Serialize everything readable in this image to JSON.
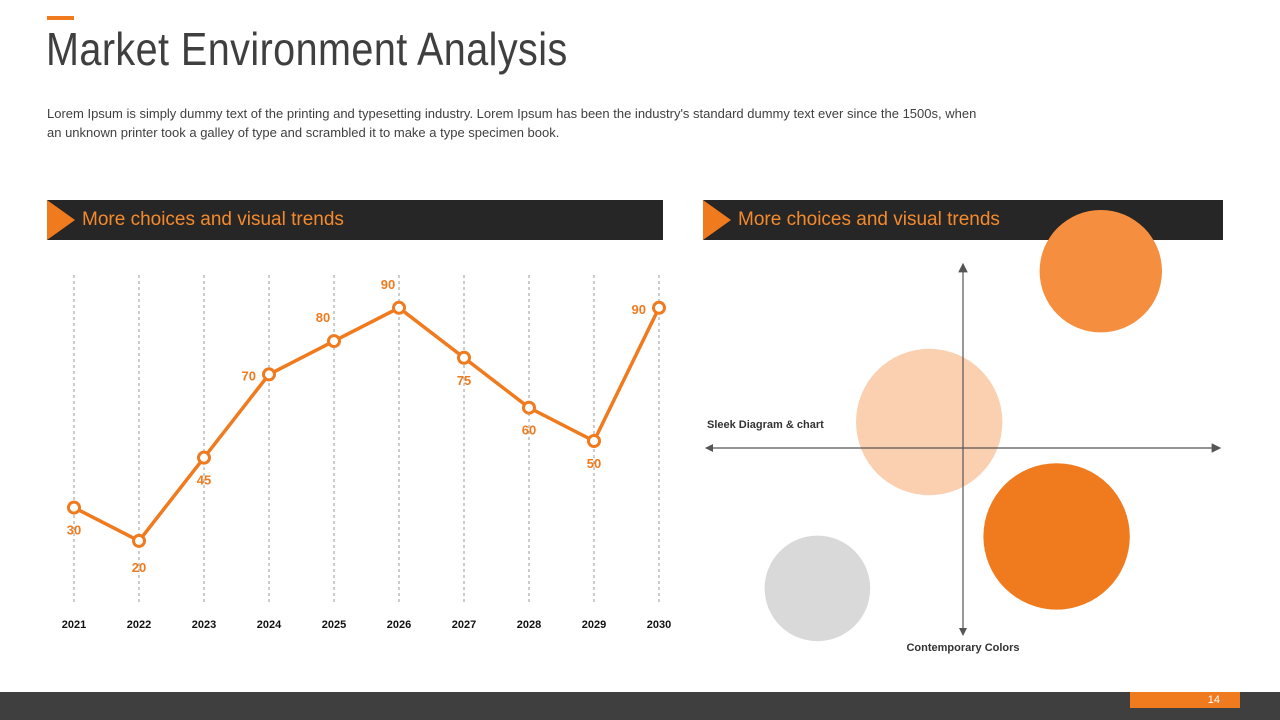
{
  "title": "Market Environment Analysis",
  "intro": "Lorem Ipsum is simply dummy text of the printing and typesetting industry. Lorem Ipsum has been the industry's standard dummy text ever since the 1500s, when an unknown printer took a galley of type and scrambled it to make a type specimen book.",
  "panels": {
    "left_title": "More choices and visual trends",
    "right_title": "More choices and visual trends"
  },
  "colors": {
    "accent": "#f07b1f",
    "dark": "#262626",
    "light_orange": "#fbd0b0",
    "mid_orange": "#f58e3e",
    "grey": "#d9d9d9"
  },
  "page_number": "14",
  "chart_data": [
    {
      "type": "line",
      "title": "",
      "x": [
        "2021",
        "2022",
        "2023",
        "2024",
        "2025",
        "2026",
        "2027",
        "2028",
        "2029",
        "2030"
      ],
      "series": [
        {
          "name": "",
          "values": [
            30,
            20,
            45,
            70,
            80,
            90,
            75,
            60,
            50,
            90
          ]
        }
      ],
      "ylim": [
        0,
        100
      ],
      "grid": "vertical dashed",
      "data_labels": true
    },
    {
      "type": "scatter",
      "subtype": "bubble",
      "xlabel": "Sleek Diagram & chart",
      "ylabel": "Contemporary Colors",
      "xlim": [
        -10,
        10
      ],
      "ylim": [
        -10,
        10
      ],
      "points": [
        {
          "x": 5.3,
          "y": 6.8,
          "size": 5.1,
          "color": "#f58e3e"
        },
        {
          "x": -1.3,
          "y": 1.0,
          "size": 6.1,
          "color": "#fbd0b0"
        },
        {
          "x": 3.6,
          "y": -3.4,
          "size": 6.1,
          "color": "#f07b1f"
        },
        {
          "x": -5.6,
          "y": -5.4,
          "size": 4.4,
          "color": "#d9d9d9"
        }
      ]
    }
  ]
}
